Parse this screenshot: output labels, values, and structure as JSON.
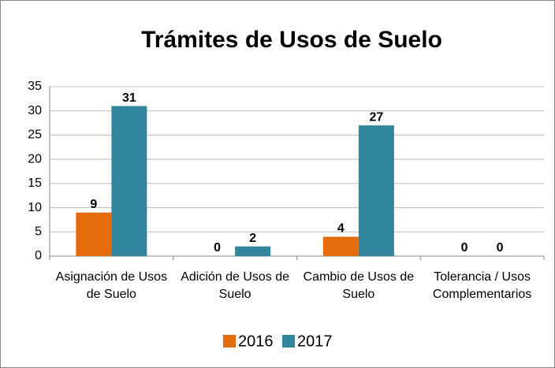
{
  "chart_data": {
    "type": "bar",
    "title": "Trámites de Usos de Suelo",
    "categories": [
      "Asignación de Usos de Suelo",
      "Adición de Usos de Suelo",
      "Cambio de Usos de Suelo",
      "Tolerancia / Usos Complementarios"
    ],
    "series": [
      {
        "name": "2016",
        "color": "#e46c0a",
        "values": [
          9,
          0,
          4,
          0
        ]
      },
      {
        "name": "2017",
        "color": "#31859c",
        "values": [
          31,
          2,
          27,
          0
        ]
      }
    ],
    "ylim": [
      0,
      35
    ],
    "yticks": [
      0,
      5,
      10,
      15,
      20,
      25,
      30,
      35
    ],
    "grid": true,
    "legend": "bottom"
  }
}
